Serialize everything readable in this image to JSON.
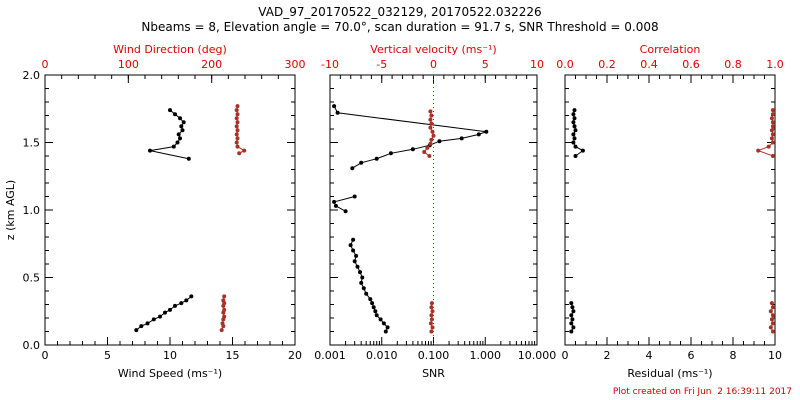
{
  "title": "VAD_97_20170522_032129, 20170522.032226",
  "subtitle": "Nbeams = 8, Elevation angle = 70.0°, scan duration = 91.7 s, SNR Threshold = 0.008",
  "footer": "Plot created on Fri Jun  2 16:39:11 2017",
  "colors": {
    "axis": "#000000",
    "top_axis_red": "#dd0000",
    "marker_red": "#a93226",
    "background": "#ffffff"
  },
  "y_axis": {
    "label": "z (km AGL)",
    "range": [
      0,
      2
    ],
    "ticks": [
      0.0,
      0.5,
      1.0,
      1.5,
      2.0
    ],
    "tick_labels": [
      "0.0",
      "0.5",
      "1.0",
      "1.5",
      "2.0"
    ],
    "minor_step": 0.1
  },
  "chart_data": [
    {
      "type": "scatter",
      "name": "wind",
      "bottom_axis": {
        "label": "Wind Speed (ms⁻¹)",
        "scale": "linear",
        "range": [
          0,
          20
        ],
        "ticks": [
          0,
          5,
          10,
          15,
          20
        ],
        "tick_labels": [
          "0",
          "5",
          "10",
          "15",
          "20"
        ],
        "minor_step": 1
      },
      "top_axis": {
        "label": "Wind Direction (deg)",
        "scale": "linear",
        "range": [
          0,
          300
        ],
        "ticks": [
          0,
          100,
          200,
          300
        ],
        "tick_labels": [
          "0",
          "100",
          "200",
          "300"
        ],
        "minor_step": 20
      },
      "series": [
        {
          "name": "wind-speed",
          "axis": "bottom",
          "color": "#000000",
          "segments": [
            [
              [
                7.3,
                0.11
              ],
              [
                7.7,
                0.14
              ],
              [
                8.2,
                0.16
              ],
              [
                8.7,
                0.19
              ],
              [
                9.2,
                0.21
              ],
              [
                9.6,
                0.24
              ],
              [
                10.0,
                0.26
              ],
              [
                10.4,
                0.29
              ],
              [
                10.9,
                0.31
              ],
              [
                11.3,
                0.33
              ],
              [
                11.7,
                0.36
              ]
            ],
            [
              [
                11.5,
                1.38
              ],
              [
                8.4,
                1.44
              ],
              [
                10.3,
                1.47
              ],
              [
                10.6,
                1.5
              ],
              [
                10.8,
                1.53
              ],
              [
                10.7,
                1.56
              ],
              [
                11.0,
                1.59
              ],
              [
                10.9,
                1.62
              ],
              [
                11.1,
                1.65
              ],
              [
                10.8,
                1.68
              ],
              [
                10.4,
                1.71
              ],
              [
                10.0,
                1.74
              ]
            ]
          ]
        },
        {
          "name": "wind-direction",
          "axis": "top",
          "color": "#a93226",
          "segments": [
            [
              [
                212,
                0.11
              ],
              [
                214,
                0.14
              ],
              [
                213,
                0.16
              ],
              [
                214,
                0.19
              ],
              [
                215,
                0.21
              ],
              [
                214,
                0.24
              ],
              [
                215,
                0.26
              ],
              [
                214,
                0.29
              ],
              [
                215,
                0.31
              ],
              [
                214,
                0.33
              ],
              [
                215,
                0.36
              ]
            ],
            [
              [
                233,
                1.42
              ],
              [
                239,
                1.44
              ],
              [
                231,
                1.47
              ],
              [
                230,
                1.5
              ],
              [
                231,
                1.53
              ],
              [
                230,
                1.56
              ],
              [
                231,
                1.59
              ],
              [
                230,
                1.62
              ],
              [
                231,
                1.65
              ],
              [
                230,
                1.68
              ],
              [
                231,
                1.71
              ],
              [
                230,
                1.74
              ],
              [
                231,
                1.77
              ]
            ]
          ]
        }
      ]
    },
    {
      "type": "scatter",
      "name": "snr",
      "bottom_axis": {
        "label": "SNR",
        "scale": "log",
        "range": [
          0.001,
          10
        ],
        "ticks": [
          0.001,
          0.01,
          0.1,
          1,
          10
        ],
        "tick_labels": [
          "0.001",
          "0.010",
          "0.100",
          "1.000",
          "10.000"
        ]
      },
      "top_axis": {
        "label": "Vertical velocity (ms⁻¹)",
        "scale": "linear",
        "range": [
          -10,
          10
        ],
        "ticks": [
          -10,
          -5,
          0,
          5,
          10
        ],
        "tick_labels": [
          "-10",
          "-5",
          "0",
          "5",
          "10"
        ],
        "minor_step": 1
      },
      "ref_line": {
        "axis": "top",
        "value": 0
      },
      "series": [
        {
          "name": "snr",
          "axis": "bottom",
          "color": "#000000",
          "segments": [
            [
              [
                0.012,
                0.1
              ],
              [
                0.013,
                0.13
              ],
              [
                0.011,
                0.16
              ],
              [
                0.0095,
                0.19
              ],
              [
                0.008,
                0.22
              ],
              [
                0.0075,
                0.25
              ],
              [
                0.007,
                0.28
              ],
              [
                0.0065,
                0.31
              ],
              [
                0.006,
                0.34
              ],
              [
                0.005,
                0.38
              ],
              [
                0.0045,
                0.42
              ],
              [
                0.004,
                0.46
              ],
              [
                0.0042,
                0.5
              ],
              [
                0.0038,
                0.54
              ],
              [
                0.0034,
                0.58
              ],
              [
                0.003,
                0.62
              ],
              [
                0.0032,
                0.66
              ],
              [
                0.0028,
                0.7
              ],
              [
                0.0025,
                0.74
              ],
              [
                0.0028,
                0.78
              ]
            ],
            [
              [
                0.002,
                0.99
              ],
              [
                0.0013,
                1.03
              ],
              [
                0.0012,
                1.06
              ],
              [
                0.003,
                1.1
              ]
            ],
            [
              [
                0.0027,
                1.31
              ],
              [
                0.004,
                1.35
              ],
              [
                0.008,
                1.38
              ],
              [
                0.015,
                1.42
              ],
              [
                0.04,
                1.45
              ],
              [
                0.085,
                1.48
              ],
              [
                0.13,
                1.51
              ],
              [
                0.35,
                1.53
              ],
              [
                0.75,
                1.56
              ],
              [
                1.05,
                1.58
              ],
              [
                0.0014,
                1.72
              ],
              [
                0.0012,
                1.77
              ]
            ]
          ]
        },
        {
          "name": "vertical-velocity",
          "axis": "top",
          "color": "#a93226",
          "segments": [
            [
              [
                -0.2,
                0.1
              ],
              [
                -0.1,
                0.13
              ],
              [
                -0.25,
                0.16
              ],
              [
                -0.15,
                0.19
              ],
              [
                -0.2,
                0.22
              ],
              [
                -0.1,
                0.25
              ],
              [
                -0.2,
                0.28
              ],
              [
                -0.15,
                0.31
              ]
            ],
            [
              [
                -0.4,
                1.4
              ],
              [
                -0.9,
                1.43
              ],
              [
                -0.6,
                1.46
              ],
              [
                -0.3,
                1.49
              ],
              [
                -0.2,
                1.52
              ],
              [
                0.0,
                1.55
              ],
              [
                -0.1,
                1.58
              ],
              [
                -0.3,
                1.61
              ],
              [
                -0.2,
                1.64
              ],
              [
                -0.3,
                1.67
              ],
              [
                -0.2,
                1.7
              ],
              [
                -0.3,
                1.73
              ]
            ]
          ]
        }
      ]
    },
    {
      "type": "scatter",
      "name": "residual",
      "bottom_axis": {
        "label": "Residual (ms⁻¹)",
        "scale": "linear",
        "range": [
          0,
          10
        ],
        "ticks": [
          0,
          2,
          4,
          6,
          8,
          10
        ],
        "tick_labels": [
          "0",
          "2",
          "4",
          "6",
          "8",
          "10"
        ],
        "minor_step": 0.5
      },
      "top_axis": {
        "label": "Correlation",
        "scale": "linear",
        "range": [
          0,
          1
        ],
        "ticks": [
          0.0,
          0.2,
          0.4,
          0.6,
          0.8,
          1.0
        ],
        "tick_labels": [
          "0.0",
          "0.2",
          "0.4",
          "0.6",
          "0.8",
          "1.0"
        ],
        "minor_step": 0.05
      },
      "series": [
        {
          "name": "residual",
          "axis": "bottom",
          "color": "#000000",
          "segments": [
            [
              [
                0.3,
                0.1
              ],
              [
                0.4,
                0.13
              ],
              [
                0.3,
                0.16
              ],
              [
                0.35,
                0.19
              ],
              [
                0.3,
                0.22
              ],
              [
                0.4,
                0.25
              ],
              [
                0.35,
                0.28
              ],
              [
                0.3,
                0.31
              ]
            ],
            [
              [
                0.5,
                1.4
              ],
              [
                0.85,
                1.44
              ],
              [
                0.5,
                1.47
              ],
              [
                0.4,
                1.5
              ],
              [
                0.45,
                1.53
              ],
              [
                0.4,
                1.56
              ],
              [
                0.5,
                1.59
              ],
              [
                0.45,
                1.62
              ],
              [
                0.4,
                1.65
              ],
              [
                0.45,
                1.68
              ],
              [
                0.4,
                1.71
              ],
              [
                0.45,
                1.74
              ]
            ]
          ]
        },
        {
          "name": "correlation",
          "axis": "top",
          "color": "#a93226",
          "segments": [
            [
              [
                0.99,
                0.1
              ],
              [
                0.98,
                0.13
              ],
              [
                0.99,
                0.16
              ],
              [
                0.985,
                0.19
              ],
              [
                0.99,
                0.22
              ],
              [
                0.98,
                0.25
              ],
              [
                0.99,
                0.28
              ],
              [
                0.985,
                0.31
              ]
            ],
            [
              [
                0.99,
                1.4
              ],
              [
                0.92,
                1.44
              ],
              [
                0.97,
                1.47
              ],
              [
                0.99,
                1.5
              ],
              [
                0.985,
                1.53
              ],
              [
                0.99,
                1.56
              ],
              [
                0.985,
                1.59
              ],
              [
                0.99,
                1.62
              ],
              [
                0.99,
                1.65
              ],
              [
                0.985,
                1.68
              ],
              [
                0.99,
                1.71
              ],
              [
                0.99,
                1.74
              ]
            ]
          ]
        }
      ]
    }
  ]
}
